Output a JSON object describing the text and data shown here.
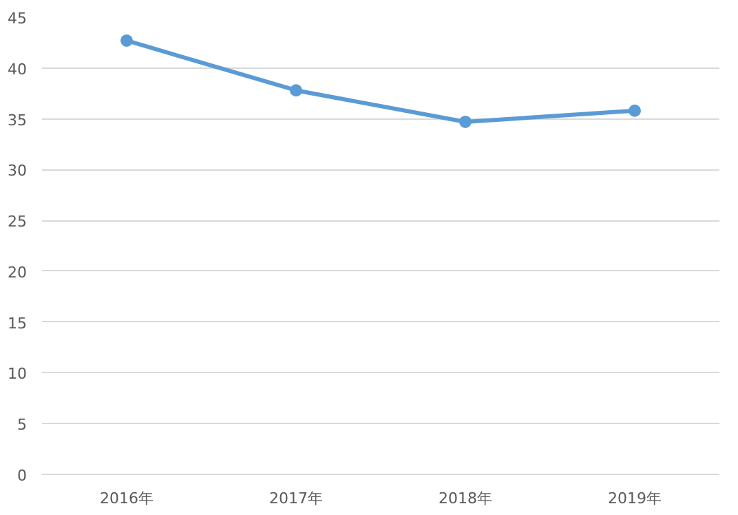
{
  "chart_data": {
    "type": "line",
    "categories": [
      "2016年",
      "2017年",
      "2018年",
      "2019年"
    ],
    "series": [
      {
        "color": "#5b9bd5",
        "values": [
          42.7,
          37.8,
          34.7,
          35.8
        ]
      }
    ],
    "ylim": [
      0,
      45
    ],
    "yticks": [
      0,
      5,
      10,
      15,
      20,
      25,
      30,
      35,
      40,
      45
    ],
    "grid": "y",
    "marker": "circle"
  }
}
